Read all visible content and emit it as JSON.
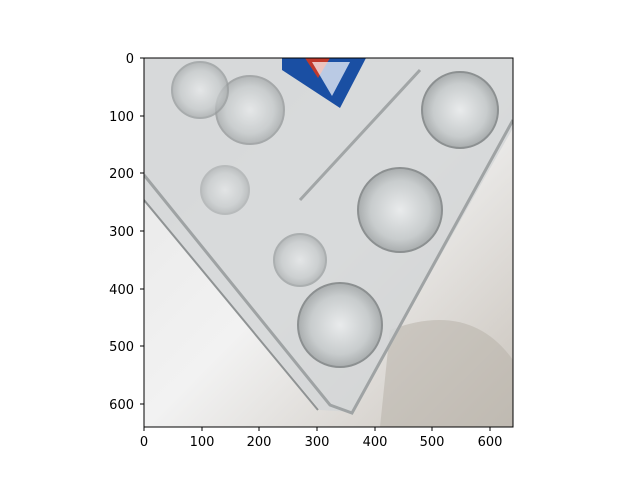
{
  "figure": {
    "image_description": "Clear plastic egg carton on a white surface, viewed from above, with a blue and red label in the top corner",
    "x_ticks": [
      "0",
      "100",
      "200",
      "300",
      "400",
      "500",
      "600"
    ],
    "y_ticks": [
      "0",
      "100",
      "200",
      "300",
      "400",
      "500",
      "600"
    ],
    "x_tick_values": [
      0,
      100,
      200,
      300,
      400,
      500,
      600
    ],
    "y_tick_values": [
      0,
      100,
      200,
      300,
      400,
      500,
      600
    ],
    "image_extent": [
      0,
      640,
      640,
      0
    ],
    "colors": {
      "background": "#f3f3f3",
      "plastic": "#cfd2d3",
      "label_blue": "#1a4fa3",
      "label_red": "#c0392b",
      "shadow": "#b9b4ad"
    }
  }
}
